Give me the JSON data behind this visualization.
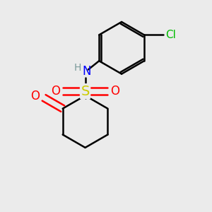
{
  "background_color": "#ebebeb",
  "bond_color": "#000000",
  "bond_width": 1.8,
  "atom_colors": {
    "C": "#000000",
    "H": "#7a9a9a",
    "N": "#0000ff",
    "O": "#ff0000",
    "S": "#cccc00",
    "Cl": "#00bb00"
  },
  "font_size": 12,
  "font_size_small": 10,
  "font_size_cl": 11
}
